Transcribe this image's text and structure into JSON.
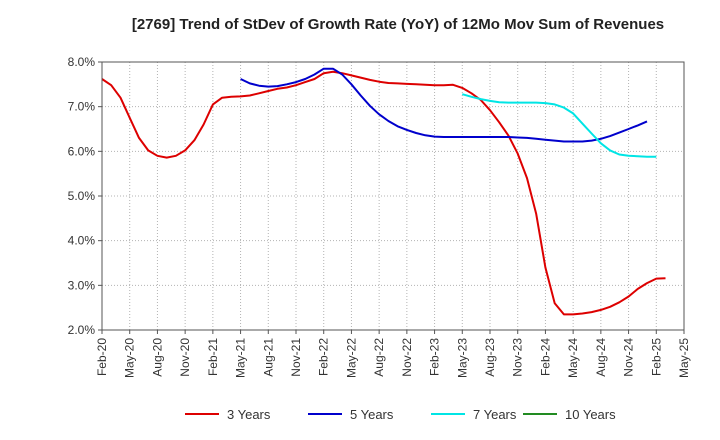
{
  "chart_data": {
    "type": "line",
    "title": "[2769]  Trend of StDev of Growth Rate (YoY) of 12Mo Mov Sum of Revenues",
    "xlabel": "",
    "ylabel": "",
    "ylim": [
      2.0,
      8.0
    ],
    "y_ticks": [
      {
        "value": 2.0,
        "label": "2.0%"
      },
      {
        "value": 3.0,
        "label": "3.0%"
      },
      {
        "value": 4.0,
        "label": "4.0%"
      },
      {
        "value": 5.0,
        "label": "5.0%"
      },
      {
        "value": 6.0,
        "label": "6.0%"
      },
      {
        "value": 7.0,
        "label": "7.0%"
      },
      {
        "value": 8.0,
        "label": "8.0%"
      }
    ],
    "x_ticks": [
      "Feb-20",
      "May-20",
      "Aug-20",
      "Nov-20",
      "Feb-21",
      "May-21",
      "Aug-21",
      "Nov-21",
      "Feb-22",
      "May-22",
      "Aug-22",
      "Nov-22",
      "Feb-23",
      "May-23",
      "Aug-23",
      "Nov-23",
      "Feb-24",
      "May-24",
      "Aug-24",
      "Nov-24",
      "Feb-25",
      "May-25"
    ],
    "x_start": "Feb-20",
    "x_end": "May-25",
    "grid": true,
    "legend_position": "bottom",
    "series": [
      {
        "name": "3 Years",
        "color": "#dd0000",
        "start_month_index": 0,
        "values": [
          7.62,
          7.48,
          7.2,
          6.75,
          6.3,
          6.02,
          5.9,
          5.86,
          5.9,
          6.02,
          6.25,
          6.6,
          7.05,
          7.2,
          7.22,
          7.23,
          7.25,
          7.3,
          7.35,
          7.4,
          7.43,
          7.48,
          7.55,
          7.62,
          7.75,
          7.78,
          7.75,
          7.7,
          7.65,
          7.6,
          7.56,
          7.53,
          7.52,
          7.51,
          7.5,
          7.49,
          7.48,
          7.48,
          7.49,
          7.42,
          7.3,
          7.15,
          6.92,
          6.65,
          6.35,
          5.95,
          5.4,
          4.6,
          3.4,
          2.6,
          2.35,
          2.35,
          2.37,
          2.4,
          2.45,
          2.52,
          2.62,
          2.75,
          2.92,
          3.05,
          3.15,
          3.16
        ]
      },
      {
        "name": "5 Years",
        "color": "#0000cc",
        "start_month_index": 15,
        "values": [
          7.62,
          7.52,
          7.47,
          7.45,
          7.46,
          7.5,
          7.55,
          7.62,
          7.72,
          7.85,
          7.85,
          7.72,
          7.5,
          7.25,
          7.02,
          6.83,
          6.68,
          6.56,
          6.48,
          6.41,
          6.36,
          6.33,
          6.32,
          6.32,
          6.32,
          6.32,
          6.32,
          6.32,
          6.32,
          6.32,
          6.31,
          6.3,
          6.28,
          6.26,
          6.24,
          6.22,
          6.22,
          6.22,
          6.24,
          6.28,
          6.34,
          6.42,
          6.5,
          6.58,
          6.67
        ]
      },
      {
        "name": "7 Years",
        "color": "#00e5e5",
        "start_month_index": 39,
        "values": [
          7.28,
          7.22,
          7.17,
          7.13,
          7.1,
          7.09,
          7.09,
          7.09,
          7.09,
          7.08,
          7.05,
          6.98,
          6.85,
          6.62,
          6.4,
          6.18,
          6.02,
          5.93,
          5.9,
          5.89,
          5.88,
          5.88
        ]
      },
      {
        "name": "10 Years",
        "color": "#228b22",
        "start_month_index": 0,
        "values": []
      }
    ]
  }
}
